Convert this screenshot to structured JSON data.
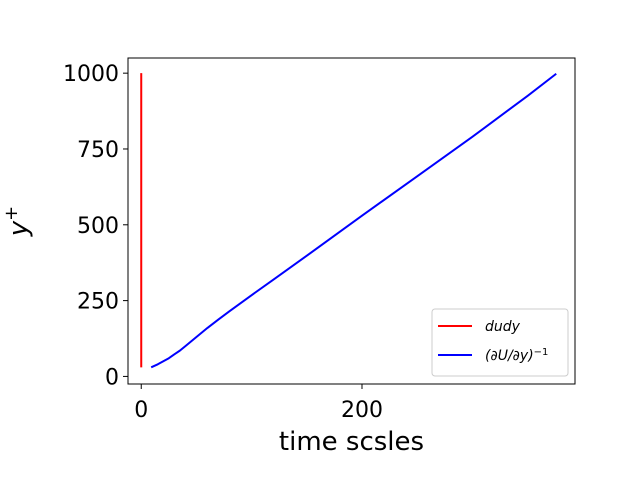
{
  "chart_data": {
    "type": "line",
    "title": "",
    "xlabel": "time scsles",
    "ylabel": "y+",
    "ylabel_parts": {
      "base": "y",
      "sup": "+"
    },
    "xlim": [
      -12,
      393
    ],
    "ylim": [
      -25,
      1050
    ],
    "xticks": [
      0,
      200
    ],
    "xtick_labels": [
      "0",
      "200"
    ],
    "yticks": [
      0,
      250,
      500,
      750,
      1000
    ],
    "ytick_labels": [
      "0",
      "250",
      "500",
      "750",
      "1000"
    ],
    "grid": false,
    "legend_position": "lower-right",
    "series": [
      {
        "name": "dudy",
        "legend_label": "dudy",
        "color": "#ff0000",
        "points": [
          [
            0,
            30
          ],
          [
            0,
            1000
          ]
        ]
      },
      {
        "name": "(∂U/∂y)^-1",
        "legend_label": "(∂U/∂y)",
        "legend_sup": "−1",
        "color": "#0000ff",
        "points": [
          [
            9,
            30
          ],
          [
            15,
            40
          ],
          [
            20,
            50
          ],
          [
            25,
            60
          ],
          [
            30,
            73
          ],
          [
            35,
            85
          ],
          [
            40,
            100
          ],
          [
            50,
            130
          ],
          [
            60,
            160
          ],
          [
            70,
            188
          ],
          [
            80,
            215
          ],
          [
            100,
            268
          ],
          [
            120,
            320
          ],
          [
            150,
            398
          ],
          [
            200,
            530
          ],
          [
            250,
            660
          ],
          [
            300,
            790
          ],
          [
            350,
            925
          ],
          [
            376,
            998
          ]
        ]
      }
    ]
  }
}
